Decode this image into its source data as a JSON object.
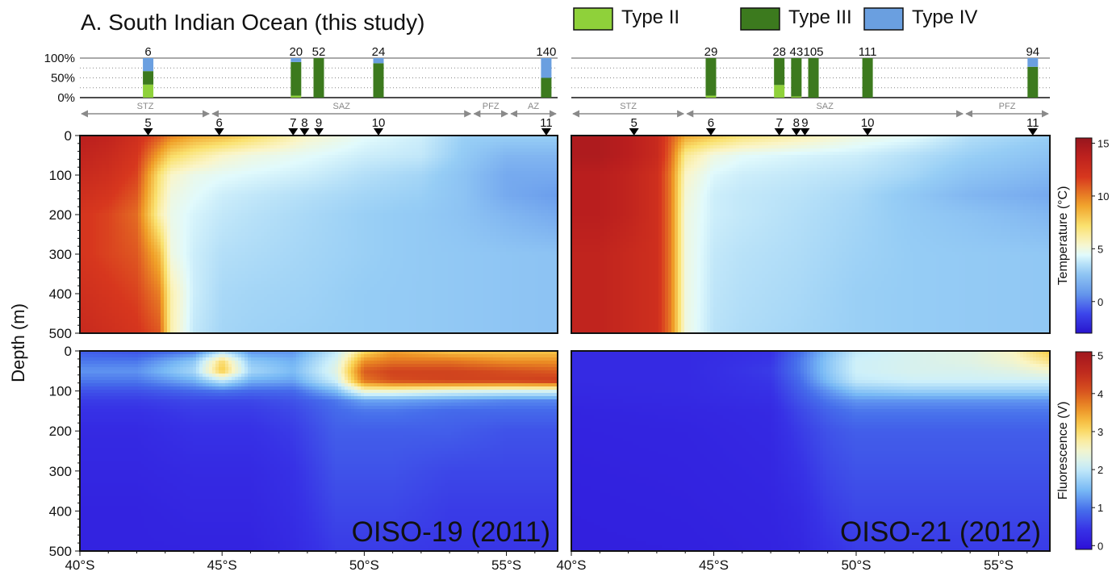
{
  "figure": {
    "title": "A. South Indian Ocean (this study)",
    "ylabel": "Depth (m)"
  },
  "legend": {
    "items": [
      {
        "label": "Type II",
        "color": "#8fd13a"
      },
      {
        "label": "Type III",
        "color": "#3c7a1e"
      },
      {
        "label": "Type IV",
        "color": "#6a9fe0"
      }
    ]
  },
  "colorbars": {
    "temperature": {
      "label": "Temperature (°C)",
      "ticks": [
        "15",
        "10",
        "5",
        "0"
      ],
      "tick_values": [
        15,
        10,
        5,
        0
      ],
      "range": [
        -3,
        15.5
      ]
    },
    "fluorescence": {
      "label": "Fluorescence (V)",
      "ticks": [
        "5",
        "4",
        "3",
        "2",
        "1",
        "0"
      ],
      "tick_values": [
        5,
        4,
        3,
        2,
        1,
        0
      ],
      "range": [
        -0.1,
        5.1
      ]
    }
  },
  "chart_data": [
    {
      "type": "bar",
      "subtype": "stacked-percent",
      "panel": "OISO-19 (2011) composition",
      "ytick_labels": [
        "100%",
        "50%",
        "0%"
      ],
      "xlim": [
        40,
        56.8
      ],
      "bars": [
        {
          "lat": 42.4,
          "n": "6",
          "type_ii": 33,
          "type_iii": 34,
          "type_iv": 33
        },
        {
          "lat": 47.6,
          "n": "20",
          "type_ii": 5,
          "type_iii": 85,
          "type_iv": 10
        },
        {
          "lat": 48.4,
          "n": "52",
          "type_ii": 0,
          "type_iii": 100,
          "type_iv": 0
        },
        {
          "lat": 50.5,
          "n": "24",
          "type_ii": 0,
          "type_iii": 87,
          "type_iv": 13
        },
        {
          "lat": 56.4,
          "n": "140",
          "type_ii": 0,
          "type_iii": 50,
          "type_iv": 50
        }
      ],
      "zones": [
        {
          "name": "STZ",
          "from": 40.0,
          "to": 44.6
        },
        {
          "name": "SAZ",
          "from": 44.6,
          "to": 53.8
        },
        {
          "name": "PFZ",
          "from": 53.8,
          "to": 55.1
        },
        {
          "name": "AZ",
          "from": 55.1,
          "to": 56.8
        }
      ],
      "stations": [
        {
          "label": "5",
          "lat": 42.4
        },
        {
          "label": "6",
          "lat": 44.9
        },
        {
          "label": "7",
          "lat": 47.5
        },
        {
          "label": "8",
          "lat": 47.9
        },
        {
          "label": "9",
          "lat": 48.4
        },
        {
          "label": "10",
          "lat": 50.5
        },
        {
          "label": "11",
          "lat": 56.4
        }
      ]
    },
    {
      "type": "bar",
      "subtype": "stacked-percent",
      "panel": "OISO-21 (2012) composition",
      "xlim": [
        40,
        56.8
      ],
      "bars": [
        {
          "lat": 44.9,
          "n": "29",
          "type_ii": 5,
          "type_iii": 95,
          "type_iv": 0
        },
        {
          "lat": 47.3,
          "n": "28",
          "type_ii": 32,
          "type_iii": 68,
          "type_iv": 0
        },
        {
          "lat": 47.9,
          "n": "43",
          "type_ii": 3,
          "type_iii": 97,
          "type_iv": 0
        },
        {
          "lat": 48.5,
          "n": "105",
          "type_ii": 0,
          "type_iii": 100,
          "type_iv": 0
        },
        {
          "lat": 50.4,
          "n": "111",
          "type_ii": 0,
          "type_iii": 100,
          "type_iv": 0
        },
        {
          "lat": 56.2,
          "n": "94",
          "type_ii": 0,
          "type_iii": 78,
          "type_iv": 22
        }
      ],
      "zones": [
        {
          "name": "STZ",
          "from": 40.0,
          "to": 44.0
        },
        {
          "name": "SAZ",
          "from": 44.0,
          "to": 53.8
        },
        {
          "name": "PFZ",
          "from": 53.8,
          "to": 56.8
        }
      ],
      "stations": [
        {
          "label": "5",
          "lat": 42.2
        },
        {
          "label": "6",
          "lat": 44.9
        },
        {
          "label": "7",
          "lat": 47.3
        },
        {
          "label": "8",
          "lat": 47.9
        },
        {
          "label": "9",
          "lat": 48.2
        },
        {
          "label": "10",
          "lat": 50.4
        },
        {
          "label": "11",
          "lat": 56.2
        }
      ]
    },
    {
      "type": "heatmap",
      "panel": "OISO-19 (2011) temperature",
      "variable": "temperature",
      "xlim": [
        40,
        56.8
      ],
      "ylim": [
        500,
        0
      ],
      "x": [
        40,
        41,
        42,
        42.8,
        43.2,
        44,
        45,
        46,
        48,
        50,
        52,
        53.5,
        55,
        56.8
      ],
      "y": [
        0,
        50,
        100,
        150,
        200,
        300,
        400,
        500
      ],
      "z": [
        [
          14,
          13.5,
          12.5,
          11,
          10,
          9,
          8.5,
          7.5,
          5.5,
          4.5,
          4,
          3,
          3,
          3
        ],
        [
          13.5,
          13,
          12,
          9,
          7.5,
          6.5,
          5.5,
          5,
          4.5,
          4,
          3.8,
          2.8,
          2,
          2
        ],
        [
          13,
          12.5,
          11.5,
          7,
          5.5,
          4.8,
          4.5,
          4.3,
          4,
          3.5,
          3.2,
          2.5,
          1.5,
          1.5
        ],
        [
          12.5,
          12,
          11,
          6.5,
          5,
          4.5,
          4,
          3.8,
          3.5,
          3.2,
          3,
          2.5,
          1.5,
          1
        ],
        [
          12,
          11.5,
          10.5,
          6,
          4.8,
          4.2,
          3.8,
          3.6,
          3.3,
          3,
          2.8,
          2.5,
          2,
          1.5
        ],
        [
          12,
          11.5,
          11,
          8.5,
          5,
          4,
          3.5,
          3.4,
          3.2,
          3,
          2.8,
          2.7,
          2.6,
          2.5
        ],
        [
          12.5,
          12,
          11.5,
          10,
          6,
          4,
          3.3,
          3.2,
          3.1,
          2.9,
          2.8,
          2.7,
          2.6,
          2.5
        ],
        [
          13,
          12.5,
          12,
          11,
          6,
          3.8,
          3.2,
          3.1,
          3,
          2.9,
          2.8,
          2.7,
          2.6,
          2.5
        ]
      ]
    },
    {
      "type": "heatmap",
      "panel": "OISO-21 (2012) temperature",
      "variable": "temperature",
      "xlim": [
        40,
        56.8
      ],
      "ylim": [
        500,
        0
      ],
      "x": [
        40,
        41,
        42,
        43,
        43.5,
        44,
        45,
        46,
        48,
        50,
        52,
        54,
        56.8
      ],
      "y": [
        0,
        50,
        100,
        150,
        200,
        300,
        400,
        500
      ],
      "z": [
        [
          14.5,
          14.5,
          14,
          13,
          11,
          9,
          8,
          7,
          6,
          5,
          4.5,
          3.5,
          3
        ],
        [
          14.5,
          14.5,
          14,
          13,
          10.5,
          6.5,
          5,
          4.5,
          4.2,
          4,
          3.5,
          3,
          2.5
        ],
        [
          14,
          14,
          13.5,
          12.5,
          10,
          5.5,
          4.3,
          4,
          3.8,
          3.6,
          3.2,
          2.5,
          2
        ],
        [
          14,
          14,
          13.5,
          12.5,
          10,
          5.2,
          4,
          3.8,
          3.6,
          3.3,
          2.7,
          2,
          1.5
        ],
        [
          14,
          14,
          13.5,
          12.5,
          10,
          5,
          4,
          3.8,
          3.5,
          3.2,
          2.8,
          2.5,
          2
        ],
        [
          13.5,
          13.5,
          13,
          12.5,
          10,
          5,
          3.8,
          3.6,
          3.4,
          3.1,
          2.9,
          2.8,
          2.7
        ],
        [
          13.5,
          13.5,
          13,
          12.5,
          10,
          5,
          3.7,
          3.5,
          3.3,
          3,
          2.9,
          2.8,
          2.7
        ],
        [
          13.5,
          13.5,
          13,
          12.5,
          10,
          5,
          3.6,
          3.4,
          3.2,
          3,
          2.9,
          2.8,
          2.7
        ]
      ]
    },
    {
      "type": "heatmap",
      "panel": "OISO-19 (2011) fluorescence",
      "variable": "fluorescence",
      "xlim": [
        40,
        56.8
      ],
      "ylim": [
        500,
        0
      ],
      "x": [
        40,
        42,
        44,
        45,
        46,
        47.5,
        49,
        50,
        51,
        53,
        55,
        56.8
      ],
      "y": [
        0,
        25,
        50,
        75,
        100,
        125,
        150,
        200,
        300,
        400,
        500
      ],
      "z": [
        [
          0.8,
          0.7,
          1,
          1.8,
          1.2,
          1.2,
          2,
          3,
          3.5,
          3.2,
          3.2,
          3.2
        ],
        [
          1,
          1,
          1.6,
          3,
          1.6,
          1.4,
          2.2,
          3.6,
          3.8,
          3.8,
          3.6,
          3.6
        ],
        [
          1.2,
          1.2,
          1.8,
          3.2,
          1.8,
          1.5,
          2.3,
          4,
          4.2,
          4.2,
          4.1,
          4
        ],
        [
          1,
          1,
          1.4,
          2,
          1.4,
          1.3,
          2.1,
          3.8,
          4.1,
          4.2,
          4.2,
          4.3
        ],
        [
          0.7,
          0.7,
          0.9,
          1,
          0.9,
          0.9,
          1.5,
          2.5,
          2.5,
          2.3,
          2.2,
          2.2
        ],
        [
          0.5,
          0.5,
          0.6,
          0.6,
          0.6,
          0.7,
          1,
          1.3,
          1.3,
          1.2,
          1.1,
          1.1
        ],
        [
          0.4,
          0.4,
          0.5,
          0.5,
          0.5,
          0.6,
          0.9,
          1,
          1,
          0.9,
          0.9,
          0.9
        ],
        [
          0.3,
          0.3,
          0.4,
          0.4,
          0.4,
          0.5,
          0.8,
          0.8,
          0.8,
          0.8,
          0.7,
          0.7
        ],
        [
          0.25,
          0.25,
          0.3,
          0.3,
          0.3,
          0.4,
          0.7,
          0.7,
          0.7,
          0.6,
          0.6,
          0.6
        ],
        [
          0.2,
          0.2,
          0.25,
          0.25,
          0.25,
          0.35,
          0.6,
          0.6,
          0.6,
          0.5,
          0.5,
          0.5
        ],
        [
          0.2,
          0.2,
          0.2,
          0.2,
          0.2,
          0.3,
          0.5,
          0.5,
          0.5,
          0.45,
          0.45,
          0.45
        ]
      ]
    },
    {
      "type": "heatmap",
      "panel": "OISO-21 (2012) fluorescence",
      "variable": "fluorescence",
      "xlim": [
        40,
        56.8
      ],
      "ylim": [
        500,
        0
      ],
      "x": [
        40,
        44,
        47,
        48,
        49,
        50,
        52,
        54,
        55.5,
        56.8
      ],
      "y": [
        0,
        25,
        50,
        75,
        100,
        125,
        150,
        200,
        300,
        400,
        500
      ],
      "z": [
        [
          0.3,
          0.3,
          0.4,
          0.9,
          1.5,
          2,
          2.2,
          2.3,
          2.6,
          3.2
        ],
        [
          0.3,
          0.3,
          0.45,
          1,
          1.6,
          2.1,
          2.2,
          2.3,
          2.5,
          2.9
        ],
        [
          0.3,
          0.3,
          0.5,
          1,
          1.6,
          2.1,
          2.2,
          2.2,
          2.3,
          2.5
        ],
        [
          0.3,
          0.3,
          0.45,
          0.9,
          1.5,
          2,
          2.1,
          2.1,
          2.1,
          2.1
        ],
        [
          0.28,
          0.3,
          0.4,
          0.8,
          1.2,
          1.6,
          1.7,
          1.7,
          1.7,
          1.7
        ],
        [
          0.25,
          0.28,
          0.35,
          0.7,
          1,
          1.2,
          1.2,
          1.2,
          1.2,
          1.2
        ],
        [
          0.22,
          0.25,
          0.3,
          0.6,
          0.85,
          1,
          1,
          1,
          1,
          1
        ],
        [
          0.2,
          0.22,
          0.28,
          0.5,
          0.7,
          0.8,
          0.8,
          0.8,
          0.8,
          0.8
        ],
        [
          0.18,
          0.2,
          0.25,
          0.4,
          0.6,
          0.7,
          0.7,
          0.7,
          0.7,
          0.7
        ],
        [
          0.16,
          0.18,
          0.22,
          0.3,
          0.5,
          0.6,
          0.6,
          0.6,
          0.6,
          0.6
        ],
        [
          0.15,
          0.16,
          0.2,
          0.25,
          0.4,
          0.5,
          0.5,
          0.5,
          0.5,
          0.5
        ]
      ]
    }
  ],
  "axes": {
    "depth_ticks": [
      "0",
      "100",
      "200",
      "300",
      "400",
      "500"
    ],
    "depth_values": [
      0,
      100,
      200,
      300,
      400,
      500
    ],
    "lat_ticks_left": [
      "40°S",
      "45°S",
      "50°S",
      "55°S"
    ],
    "lat_ticks_right": [
      "40°S",
      "45°S",
      "50°S",
      "55°S"
    ],
    "lat_values": [
      40,
      45,
      50,
      55
    ]
  },
  "panels": {
    "left_label": "OISO-19 (2011)",
    "right_label": "OISO-21 (2012)"
  },
  "colors": {
    "type_ii": "#8fd13a",
    "type_iii": "#3c7a1e",
    "type_iv": "#6a9fe0",
    "zone_arrow": "#8a8a8a",
    "station_marker": "#000000"
  }
}
